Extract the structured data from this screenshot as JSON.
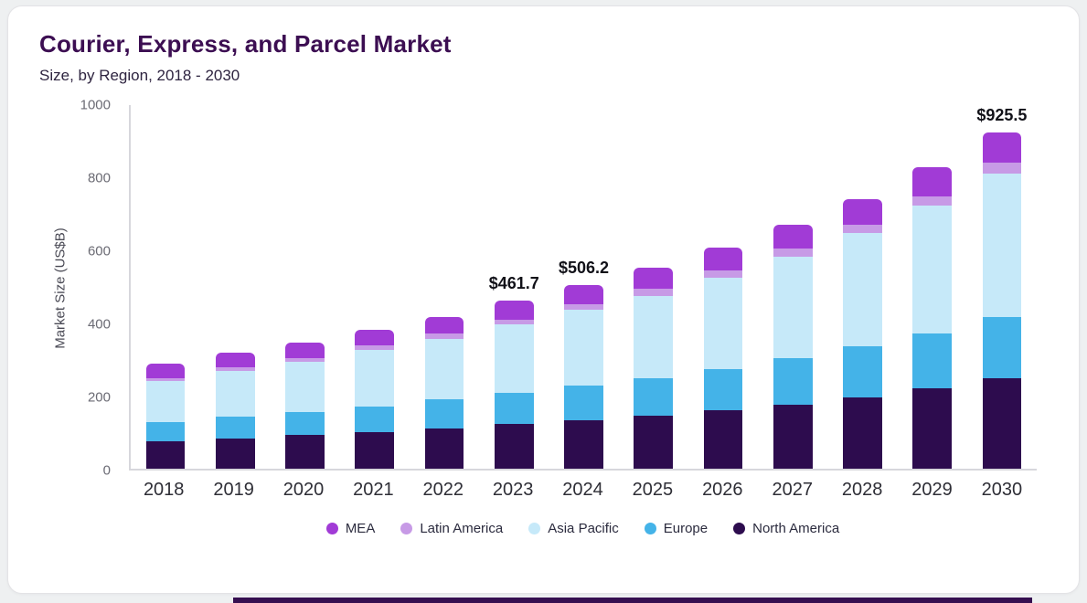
{
  "chart_data": {
    "type": "bar",
    "stacked": true,
    "title": "Courier, Express, and Parcel Market",
    "subtitle": "Size, by Region, 2018 - 2030",
    "ylabel": "Market Size (US$B)",
    "ylim": [
      0,
      1000
    ],
    "yticks": [
      0,
      200,
      400,
      600,
      800,
      1000
    ],
    "grid": false,
    "legend_position": "bottom",
    "categories": [
      "2018",
      "2019",
      "2020",
      "2021",
      "2022",
      "2023",
      "2024",
      "2025",
      "2026",
      "2027",
      "2028",
      "2029",
      "2030"
    ],
    "series": [
      {
        "name": "North America",
        "color": "#2d0c4e",
        "values": [
          75,
          83,
          92,
          100,
          110,
          122,
          133,
          145,
          160,
          177,
          197,
          220,
          248
        ]
      },
      {
        "name": "Europe",
        "color": "#44b3e8",
        "values": [
          53,
          60,
          65,
          72,
          80,
          86,
          95,
          103,
          114,
          126,
          139,
          153,
          168
        ]
      },
      {
        "name": "Asia Pacific",
        "color": "#c6e9f9",
        "values": [
          112,
          125,
          137,
          155,
          168,
          188,
          208,
          228,
          252,
          280,
          312,
          350,
          395
        ]
      },
      {
        "name": "Latin America",
        "color": "#c79ae6",
        "values": [
          9,
          10,
          11,
          12,
          13,
          14.7,
          16.2,
          18,
          20,
          22,
          24,
          27,
          30
        ]
      },
      {
        "name": "MEA",
        "color": "#a13bd6",
        "values": [
          41,
          42,
          42,
          44,
          47,
          51,
          54,
          58,
          61,
          65,
          69,
          78,
          84.5
        ]
      }
    ],
    "totals": [
      290,
      320,
      347,
      383,
      418,
      461.7,
      506.2,
      552,
      607,
      670,
      741,
      828,
      925.5
    ],
    "legend_order": [
      "MEA",
      "Latin America",
      "Asia Pacific",
      "Europe",
      "North America"
    ],
    "annotations": [
      {
        "category": "2023",
        "label": "$461.7"
      },
      {
        "category": "2024",
        "label": "$506.2"
      },
      {
        "category": "2030",
        "label": "$925.5"
      }
    ]
  },
  "colors": {
    "title": "#3c0e52",
    "card_background": "#ffffff",
    "page_background": "#eef0f1",
    "footer_strip": "#360f50"
  }
}
